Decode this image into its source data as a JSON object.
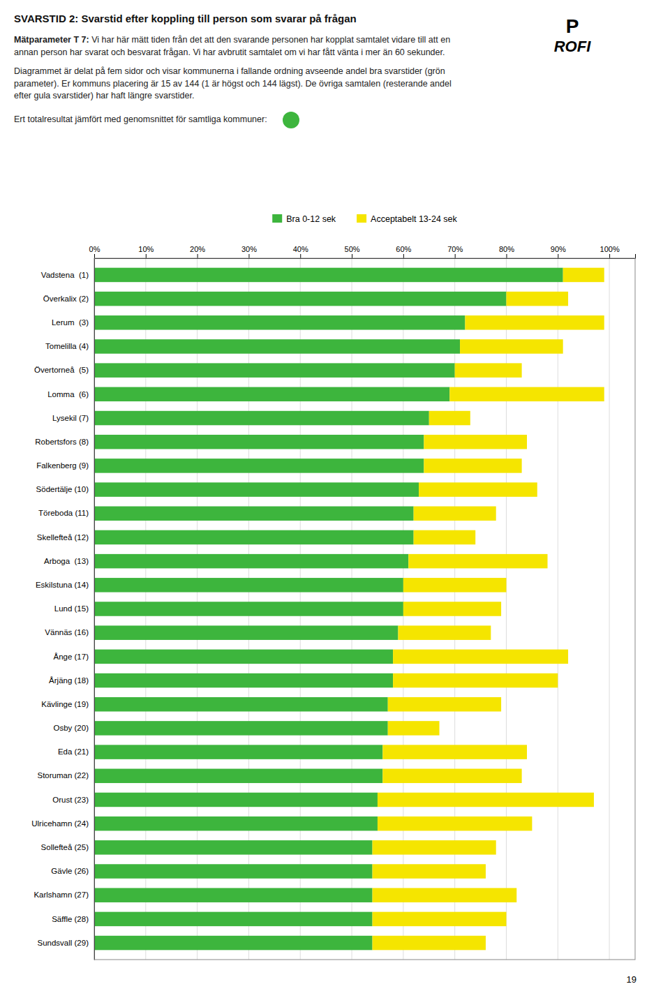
{
  "chart_data": {
    "type": "bar",
    "orientation": "horizontal",
    "stacked": true,
    "title": "SVARSTID 2: Svarstid efter koppling till person som svarar på frågan",
    "subtitle": "Mätparameter T 7: Vi har här mätt tiden från det att den svarande personen har kopplat samtalet vidare till att en annan person har svarat och besvarat frågan. Vi har avbrutit samtalet om vi har fått vänta i mer än 60 sekunder.",
    "annotations": [
      "Diagrammet är delat på fem sidor och visar kommunerna i fallande ordning avseende andel bra svarstider (grön parameter). Er kommuns placering är 15 av 144 (1 är högst och 144 lägst). De övriga samtalen (resterande andel efter gula svarstider) har haft längre svarstider.",
      "Ert totalresultat jämfört med genomsnittet för samtliga kommuner:",
      "P",
      "ROFI",
      "19"
    ],
    "categories": [
      "Vadstena  (1)",
      "Överkalix (2)",
      "Lerum  (3)",
      "Tomelilla (4)",
      "Övertorneå  (5)",
      "Lomma  (6)",
      "Lysekil (7)",
      "Robertsfors (8)",
      "Falkenberg (9)",
      "Södertälje (10)",
      "Töreboda (11)",
      "Skellefteå (12)",
      "Arboga  (13)",
      "Eskilstuna (14)",
      "Lund (15)",
      "Vännäs (16)",
      "Ånge (17)",
      "Årjäng (18)",
      "Kävlinge (19)",
      "Osby (20)",
      "Eda (21)",
      "Storuman (22)",
      "Orust (23)",
      "Ulricehamn (24)",
      "Sollefteå (25)",
      "Gävle (26)",
      "Karlshamn (27)",
      "Säffle (28)",
      "Sundsvall (29)"
    ],
    "series": [
      {
        "name": "Bra 0-12 sek",
        "color": "#3db53d",
        "values": [
          91,
          80,
          72,
          71,
          70,
          69,
          65,
          64,
          64,
          63,
          62,
          62,
          61,
          60,
          60,
          59,
          58,
          58,
          57,
          57,
          56,
          56,
          55,
          55,
          54,
          54,
          54,
          54,
          54
        ]
      },
      {
        "name": "Acceptabelt 13-24 sek",
        "color": "#f5e500",
        "values": [
          8,
          12,
          27,
          20,
          13,
          30,
          8,
          20,
          19,
          23,
          16,
          12,
          27,
          20,
          19,
          18,
          34,
          32,
          22,
          10,
          28,
          27,
          42,
          30,
          24,
          22,
          28,
          26,
          22
        ]
      }
    ],
    "xlim": [
      0,
      105
    ],
    "xticks": [
      {
        "value": 0,
        "label": "0%"
      },
      {
        "value": 10,
        "label": "10%"
      },
      {
        "value": 20,
        "label": "20%"
      },
      {
        "value": 30,
        "label": "30%"
      },
      {
        "value": 40,
        "label": "40%"
      },
      {
        "value": 50,
        "label": "50%"
      },
      {
        "value": 60,
        "label": "60%"
      },
      {
        "value": 70,
        "label": "70%"
      },
      {
        "value": 80,
        "label": "80%"
      },
      {
        "value": 90,
        "label": "90%"
      },
      {
        "value": 100,
        "label": "100%"
      }
    ],
    "grid": true,
    "legend": "top"
  }
}
